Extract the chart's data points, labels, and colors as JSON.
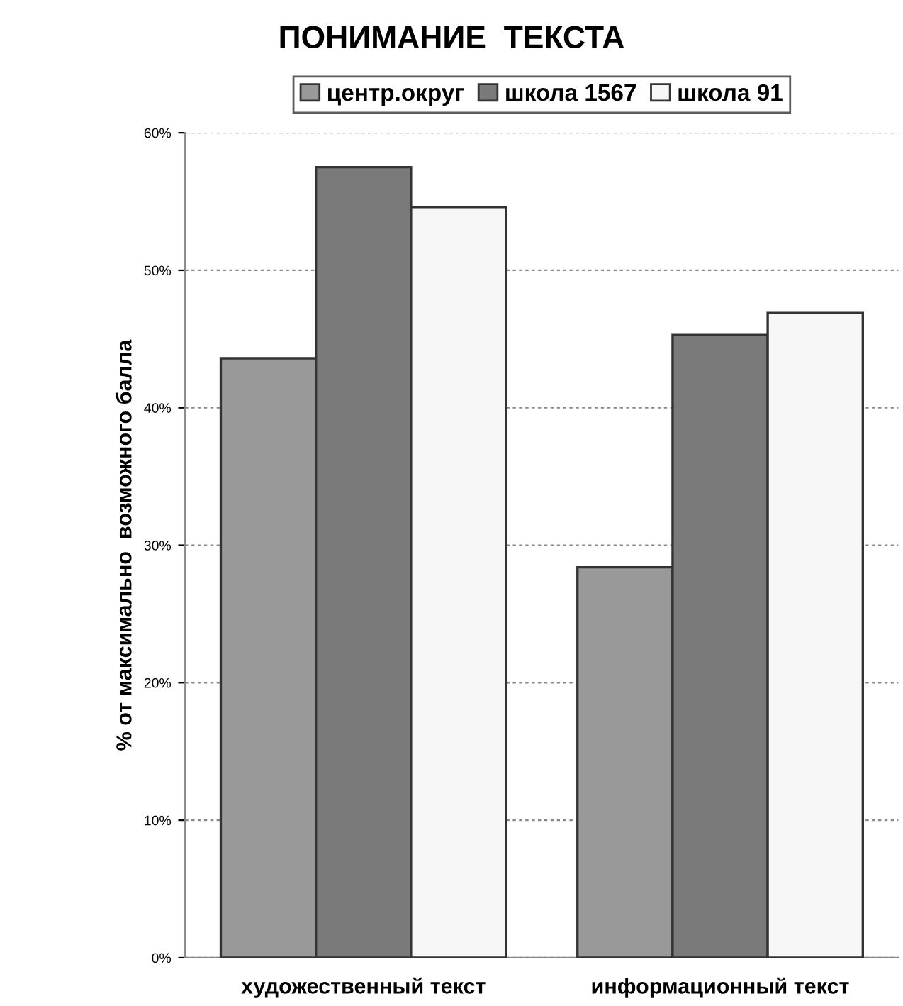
{
  "chart_data": {
    "type": "bar",
    "title": "ПОНИМАНИЕ  ТЕКСТА",
    "ylabel": "% от максимально  возможного балла",
    "categories": [
      "художественный текст",
      "информационный текст"
    ],
    "series": [
      {
        "name": "центр.округ",
        "color": "#999999",
        "values": [
          43.6,
          28.4
        ]
      },
      {
        "name": "школа 1567",
        "color": "#7a7a7a",
        "values": [
          57.5,
          45.3
        ]
      },
      {
        "name": "школа 91",
        "color": "#f7f7f7",
        "values": [
          54.6,
          46.9
        ]
      }
    ],
    "ylim": [
      0,
      60
    ],
    "yticks": [
      {
        "value": 0,
        "label": "0%"
      },
      {
        "value": 10,
        "label": "10%"
      },
      {
        "value": 20,
        "label": "20%"
      },
      {
        "value": 30,
        "label": "30%"
      },
      {
        "value": 40,
        "label": "40%"
      },
      {
        "value": 50,
        "label": "50%"
      },
      {
        "value": 60,
        "label": "60%"
      }
    ],
    "grid": "y",
    "legend": "top"
  }
}
